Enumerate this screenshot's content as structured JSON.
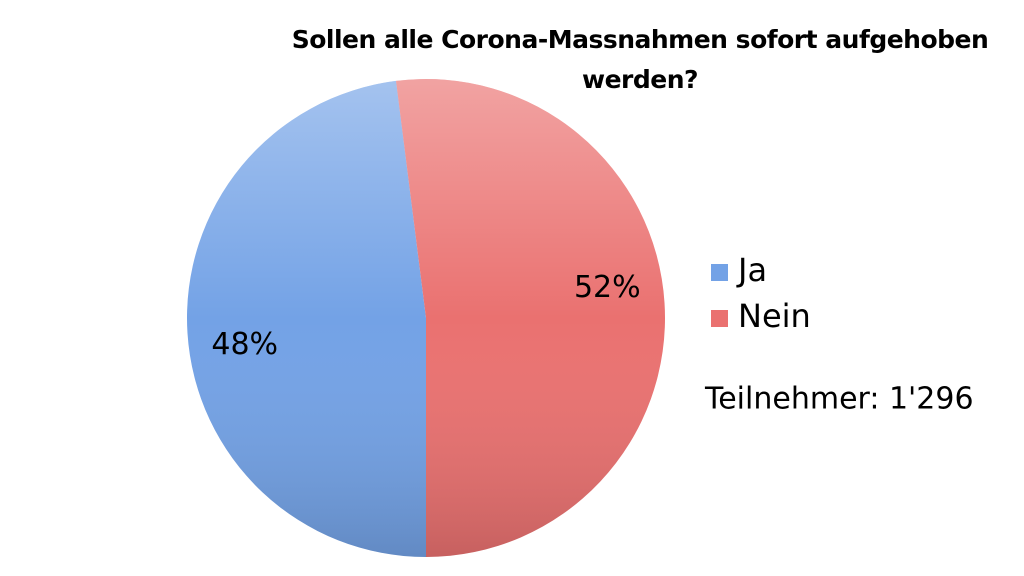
{
  "chart_data": {
    "type": "pie",
    "title": "Sollen alle Corona-Massnahmen sofort aufgehoben werden?",
    "categories": [
      "Ja",
      "Nein"
    ],
    "values": [
      48,
      52
    ],
    "value_labels": [
      "48%",
      "52%"
    ],
    "colors": [
      "#73a2e6",
      "#ea7170"
    ],
    "legend": "right",
    "annotation": "Teilnehmer: 1'296"
  }
}
